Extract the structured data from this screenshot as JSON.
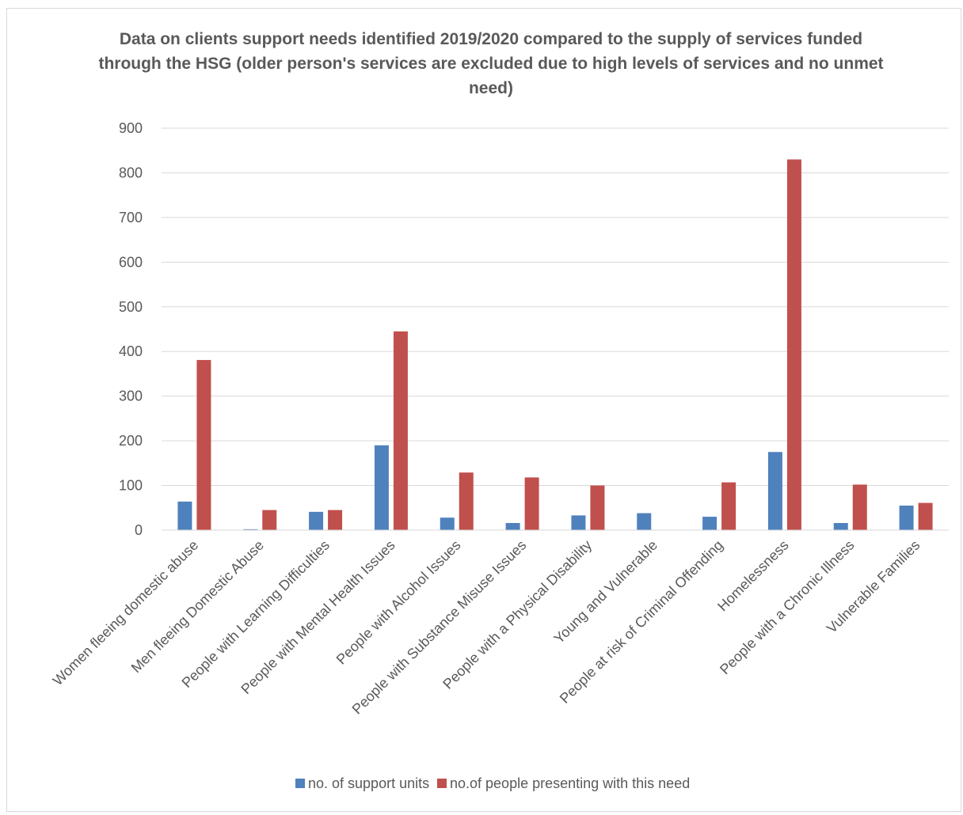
{
  "colors": {
    "series_1": "#4f81bd",
    "series_2": "#c0504d",
    "gridline": "#d9d9d9",
    "text": "#595959"
  },
  "chart_data": {
    "type": "bar",
    "title": "Data on clients support needs identified 2019/2020 compared to the supply of services funded through the HSG (older person's services are excluded due to high levels of services and no unmet need)",
    "xlabel": "",
    "ylabel": "",
    "ylim": [
      0,
      900
    ],
    "yticks": [
      "0",
      "100",
      "200",
      "300",
      "400",
      "500",
      "600",
      "700",
      "800",
      "900"
    ],
    "grid": true,
    "legend_position": "bottom",
    "categories": [
      "Women fleeing domestic abuse",
      "Men fleeing Domestic Abuse",
      "People with Learning Difficulties",
      "People with Mental Health Issues",
      "People with Alcohol Issues",
      "People with Substance Misuse Issues",
      "People with a Physical Disability",
      "Young and Vulnerable",
      "People at risk of Criminal Offending",
      "Homelessness",
      "People with a Chronic Illness",
      "Vulnerable Families"
    ],
    "series": [
      {
        "name": "no. of support units",
        "values": [
          64,
          2,
          41,
          190,
          28,
          16,
          33,
          38,
          30,
          175,
          16,
          55
        ]
      },
      {
        "name": "no.of people presenting with this need",
        "values": [
          381,
          45,
          45,
          445,
          129,
          118,
          100,
          0,
          107,
          830,
          102,
          61
        ]
      }
    ]
  }
}
